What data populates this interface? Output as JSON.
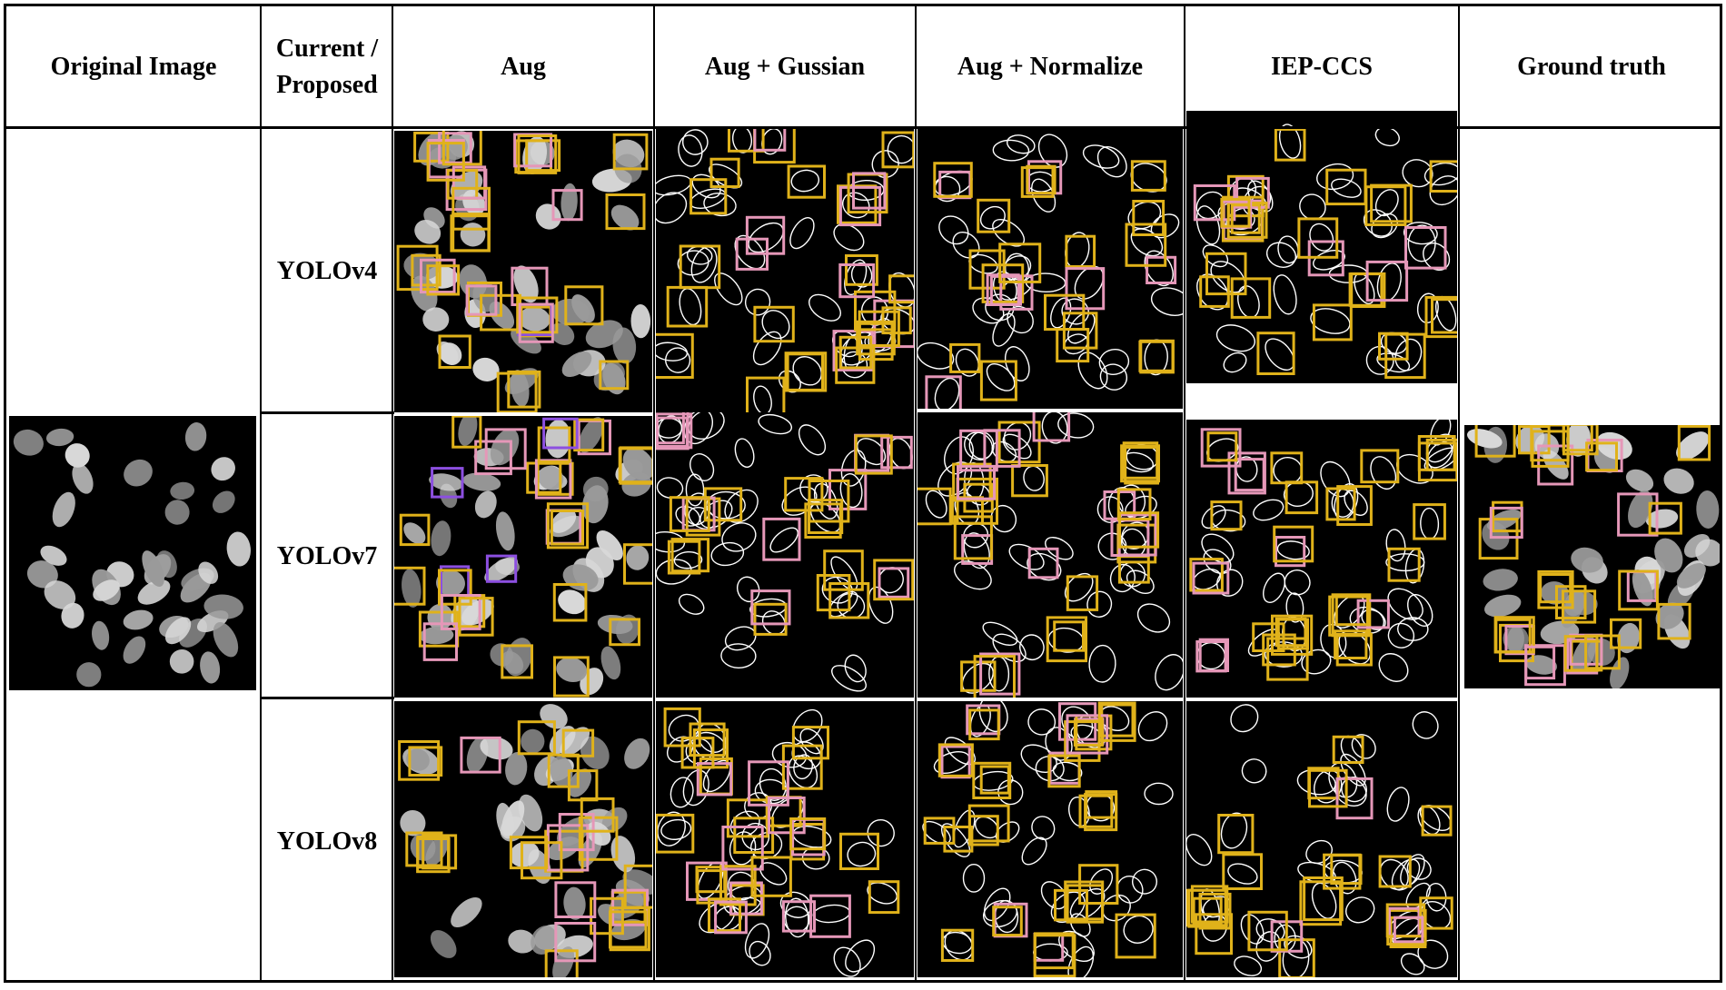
{
  "headers": {
    "original": "Original Image",
    "current": "Current / Proposed",
    "aug": "Aug",
    "gaussian": "Aug + Gussian",
    "normalize": "Aug + Normalize",
    "iep": "IEP-CCS",
    "ground": "Ground truth"
  },
  "rows": [
    "YOLOv4",
    "YOLOv7",
    "YOLOv8"
  ],
  "colors": {
    "nucleus": "#9a9a9a",
    "nucleus_light": "#d8d8d8",
    "outline": "#ffffff",
    "box_yellow": "#e0b21a",
    "box_pink": "#e597b8",
    "box_purple": "#8c4fe0"
  }
}
